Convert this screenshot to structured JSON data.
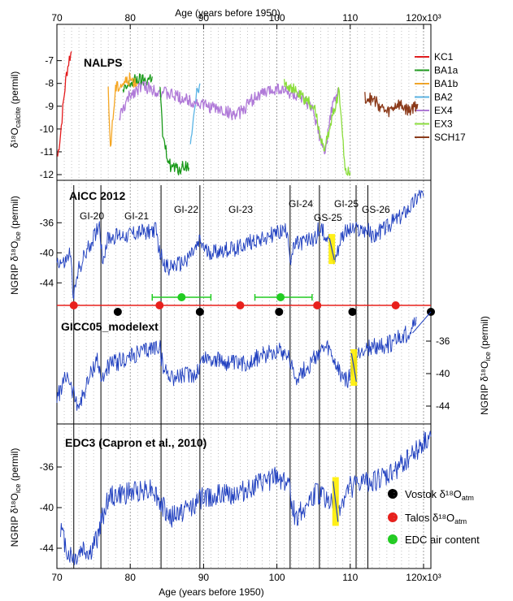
{
  "chart_data": {
    "type": "line",
    "x_axis": {
      "label": "Age (years before 1950)",
      "range": [
        70000,
        121000
      ],
      "ticks": [
        "70",
        "80",
        "90",
        "100",
        "110",
        "120x10³"
      ]
    },
    "panels": [
      {
        "title": "NALPS",
        "ylabel": "δ¹⁸O",
        "ylabel_sub": "calcite",
        "ylabel_unit": "(permil)",
        "y_range": [
          -12,
          -6.3
        ],
        "y_ticks": [
          "-7",
          "-8",
          "-9",
          "-10",
          "-11",
          "-12"
        ],
        "series": [
          {
            "name": "KC1",
            "color": "#e41a1c",
            "x": [
              70100,
              70500,
              70900,
              71300,
              71700,
              72000
            ],
            "y": [
              -11.2,
              -10.2,
              -8.8,
              -7.6,
              -6.9,
              -6.6
            ]
          },
          {
            "name": "BA1a",
            "color": "#1a9a1a",
            "x": [
              79000,
              80000,
              81000,
              82000,
              83000
            ],
            "y": [
              -8.4,
              -8.0,
              -7.8,
              -7.9,
              -7.7
            ]
          },
          {
            "name": "BA1b",
            "color": "#f5a623",
            "x": [
              77000,
              77300,
              78000,
              79000,
              80000,
              81000
            ],
            "y": [
              -8.4,
              -10.8,
              -8.2,
              -8.0,
              -7.8,
              -8.0
            ]
          },
          {
            "name": "BA2",
            "color": "#5ab4e5",
            "x": [
              88200,
              88600,
              89000,
              89500
            ],
            "y": [
              -10.5,
              -9.5,
              -8.4,
              -8.0
            ]
          },
          {
            "name": "EX4",
            "color": "#b07ad8",
            "x": [
              78500,
              80000,
              81500,
              82500,
              94600,
              97000,
              100000,
              103000,
              105000,
              106500,
              107500,
              108500
            ],
            "y": [
              -9.5,
              -8.5,
              -8.1,
              -8.2,
              -9.4,
              -8.6,
              -8.2,
              -8.6,
              -9.2,
              -11.2,
              -9.0,
              -8.3
            ]
          },
          {
            "name": "EX3",
            "color": "#8bdd3c",
            "x": [
              101000,
              103000,
              105000,
              106500,
              107500,
              108500,
              109300,
              110000
            ],
            "y": [
              -7.9,
              -8.5,
              -9.0,
              -11.0,
              -9.5,
              -8.3,
              -11.8,
              -11.9
            ]
          },
          {
            "name": "SCH17",
            "color": "#8b3a1a",
            "x": [
              112000,
              113500,
              115000,
              116500,
              118000,
              119200
            ],
            "y": [
              -8.6,
              -8.8,
              -9.3,
              -8.9,
              -9.2,
              -8.9
            ]
          },
          {
            "name": "",
            "color": "#1a9a1a",
            "x": [
              84000,
              84500,
              85500,
              86500,
              87500,
              88000
            ],
            "y": [
              -8.0,
              -10.6,
              -11.6,
              -11.8,
              -11.6,
              -11.7
            ]
          }
        ]
      },
      {
        "title": "AICC 2012",
        "ylabel": "NGRIP δ¹⁸O",
        "ylabel_sub": "ice",
        "ylabel_unit": "(permil)",
        "y_range": [
          -47,
          -31
        ],
        "y_ticks": [
          "-36",
          "-40",
          "-44"
        ],
        "interstadials": [
          "GI-20",
          "GI-21",
          "GI-22",
          "GI-23",
          "GI-24",
          "GI-25",
          "GS-25",
          "GS-26"
        ],
        "series": [
          {
            "name": "NGRIP",
            "color": "#1f3fbf",
            "x": [
              70000,
              71000,
              71800,
              72300,
              73000,
              75000,
              75800,
              76200,
              77000,
              80000,
              83500,
              84000,
              85000,
              87000,
              89000,
              89500,
              90500,
              94000,
              98000,
              101500,
              101800,
              102500,
              104000,
              105300,
              105600,
              107000,
              107600,
              108200,
              108800,
              110000,
              112400,
              113000,
              115000,
              117000,
              118500,
              119500,
              120000
            ],
            "y": [
              -41.0,
              -41.5,
              -40.0,
              -46.0,
              -42.0,
              -38.0,
              -36.0,
              -41.0,
              -38.0,
              -37.5,
              -37.0,
              -40.0,
              -42.0,
              -41.5,
              -39.5,
              -38.5,
              -40.0,
              -39.5,
              -38.0,
              -37.0,
              -41.0,
              -39.0,
              -38.5,
              -38.0,
              -37.0,
              -37.5,
              -41.0,
              -40.0,
              -37.5,
              -37.0,
              -37.0,
              -38.0,
              -36.5,
              -35.0,
              -33.5,
              -32.0,
              -32.5
            ]
          }
        ]
      },
      {
        "title": "GICC05_modelext",
        "ylabel": "NGRIP δ¹⁸O",
        "ylabel_sub": "ice",
        "ylabel_unit": "(permil)",
        "y_range": [
          -46,
          -32
        ],
        "y_ticks": [
          "-36",
          "-40",
          "-44"
        ],
        "series": [
          {
            "name": "NGRIP",
            "color": "#1f3fbf",
            "x": [
              70000,
              71500,
              72000,
              73000,
              75500,
              76000,
              77000,
              80000,
              84000,
              84500,
              86000,
              89000,
              90000,
              95000,
              100000,
              101500,
              102500,
              104500,
              105500,
              107000,
              108000,
              109500,
              110000,
              111500,
              115000,
              118000,
              119000
            ],
            "y": [
              -43.0,
              -40.0,
              -42.0,
              -44.0,
              -38.0,
              -41.0,
              -39.0,
              -38.0,
              -36.5,
              -39.5,
              -40.5,
              -40.0,
              -38.0,
              -39.0,
              -37.0,
              -37.5,
              -40.5,
              -39.0,
              -37.5,
              -37.0,
              -39.0,
              -41.0,
              -40.0,
              -37.0,
              -36.5,
              -35.0,
              -33.0
            ]
          }
        ]
      },
      {
        "title": "EDC3 (Capron et al., 2010)",
        "ylabel": "NGRIP δ¹⁸O",
        "ylabel_sub": "ice",
        "ylabel_unit": "(permil)",
        "y_range": [
          -46,
          -32
        ],
        "y_ticks": [
          "-36",
          "-40",
          "-44"
        ],
        "series": [
          {
            "name": "NGRIP",
            "color": "#1f3fbf",
            "x": [
              70500,
              71500,
              72500,
              73500,
              74500,
              75500,
              76000,
              77000,
              80000,
              83000,
              84000,
              85500,
              88000,
              90000,
              95000,
              100000,
              101500,
              102500,
              105500,
              107500,
              108500,
              110000,
              112000,
              115000,
              118000,
              121000
            ],
            "y": [
              -42.0,
              -44.5,
              -45.0,
              -44.0,
              -44.5,
              -43.0,
              -41.5,
              -39.0,
              -38.5,
              -38.0,
              -39.5,
              -41.0,
              -40.0,
              -39.0,
              -38.5,
              -37.0,
              -37.5,
              -41.0,
              -38.5,
              -39.5,
              -40.0,
              -38.0,
              -37.5,
              -37.0,
              -35.0,
              -33.0
            ]
          }
        ]
      }
    ],
    "markers": {
      "vostok": {
        "label": "Vostok δ¹⁸O",
        "sub": "atm",
        "color": "#000000",
        "x": [
          78300,
          89500,
          100300,
          110300,
          121000
        ]
      },
      "talos": {
        "label": "Talos δ¹⁸O",
        "sub": "atm",
        "color": "#e8201c",
        "x": [
          72300,
          84000,
          95000,
          105500,
          116200
        ]
      },
      "edc": {
        "label": "EDC air content",
        "sub": "",
        "color": "#22cc22",
        "points": [
          {
            "x": 87000,
            "xerr": [
              83000,
              91000
            ]
          },
          {
            "x": 100500,
            "xerr": [
              97000,
              104800
            ]
          }
        ]
      }
    },
    "event_lines_x": [
      72300,
      76000,
      84200,
      89500,
      101800,
      105800,
      110800,
      112400
    ],
    "yellow_bars": [
      {
        "panel": 1,
        "x": 107500,
        "y": [
          -41.5,
          -37.5
        ]
      },
      {
        "panel": 2,
        "x": 110500,
        "y": [
          -41.5,
          -37.0
        ]
      },
      {
        "panel": 3,
        "x": 108000,
        "y": [
          -41.8,
          -37.0
        ]
      }
    ]
  }
}
